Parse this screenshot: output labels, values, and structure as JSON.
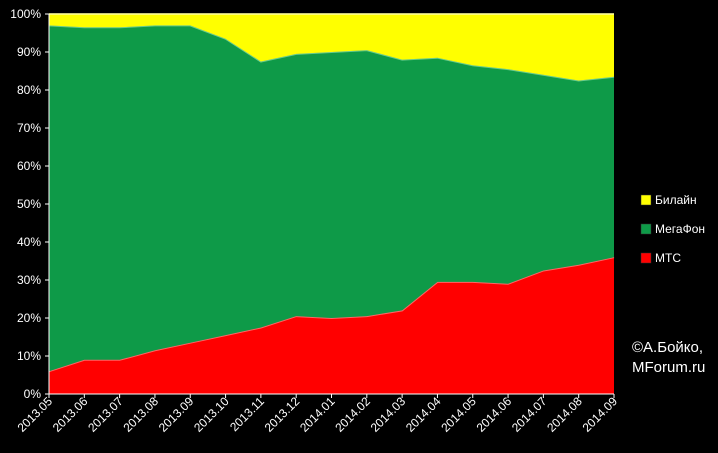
{
  "chart_data": {
    "type": "area",
    "stacked": true,
    "normalized_percent": true,
    "categories": [
      "2013.05",
      "2013.06",
      "2013.07",
      "2013.08",
      "2013.09",
      "2013.10",
      "2013.11",
      "2013.12",
      "2014.01",
      "2014.02",
      "2014.03",
      "2014.04",
      "2014.05",
      "2014.06",
      "2014.07",
      "2014.08",
      "2014.09"
    ],
    "series": [
      {
        "name": "МТС",
        "color": "#ff0000",
        "values": [
          6,
          9,
          9,
          11.5,
          13.5,
          15.5,
          17.5,
          20.5,
          20,
          20.5,
          22,
          29.5,
          29.5,
          29,
          32.5,
          34,
          36
        ]
      },
      {
        "name": "МегаФон",
        "color": "#0e9a48",
        "values": [
          91,
          87.5,
          87.5,
          85.5,
          83.5,
          78,
          70,
          69,
          70,
          70,
          66,
          59,
          57,
          56.5,
          51.5,
          48.5,
          47.5
        ]
      },
      {
        "name": "Билайн",
        "color": "#ffff00",
        "values": [
          3,
          3.5,
          3.5,
          3,
          3,
          6.5,
          12.5,
          10.5,
          10,
          9.5,
          12,
          11.5,
          13.5,
          14.5,
          16,
          17.5,
          16.5
        ]
      }
    ],
    "ylim": [
      0,
      100
    ],
    "y_ticks": [
      "0%",
      "10%",
      "20%",
      "30%",
      "40%",
      "50%",
      "60%",
      "70%",
      "80%",
      "90%",
      "100%"
    ],
    "legend_position": "right",
    "legend_order": [
      "Билайн",
      "МегаФон",
      "МТС"
    ],
    "grid": false,
    "annotation": [
      "©А.Бойко,",
      "MForum.ru"
    ]
  }
}
